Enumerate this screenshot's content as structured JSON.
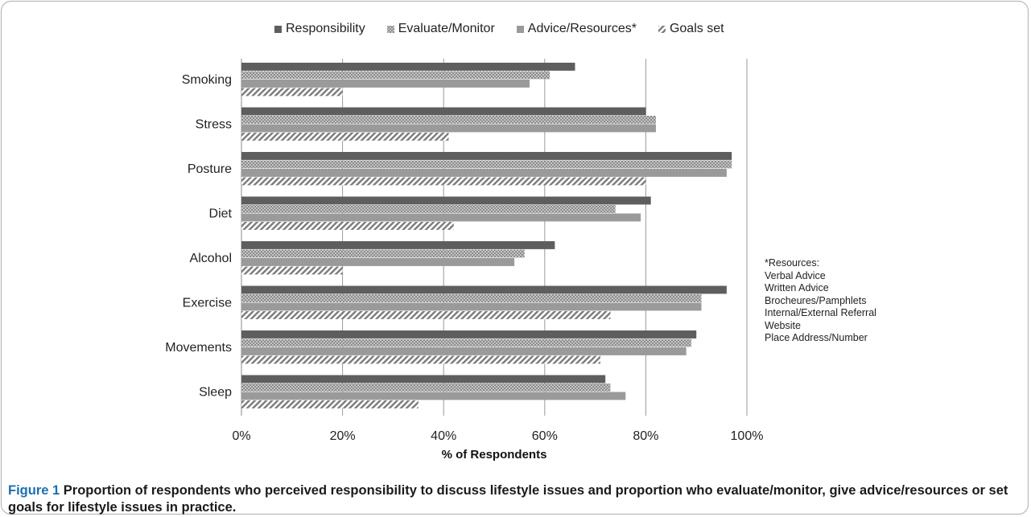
{
  "chart_data": {
    "type": "bar",
    "orientation": "horizontal",
    "categories": [
      "Smoking",
      "Stress",
      "Posture",
      "Diet",
      "Alcohol",
      "Exercise",
      "Movements",
      "Sleep"
    ],
    "series": [
      {
        "name": "Responsibility",
        "color": "#5e5e5e",
        "pattern": "solid",
        "values": [
          66,
          80,
          97,
          81,
          62,
          96,
          90,
          72
        ]
      },
      {
        "name": "Evaluate/Monitor",
        "color": "#9a9a9a",
        "pattern": "checker",
        "values": [
          61,
          82,
          97,
          74,
          56,
          91,
          89,
          73
        ]
      },
      {
        "name": "Advice/Resources*",
        "color": "#9a9a9a",
        "pattern": "solid",
        "values": [
          57,
          82,
          96,
          79,
          54,
          91,
          88,
          76
        ]
      },
      {
        "name": "Goals set",
        "color": "#8a8a8a",
        "pattern": "diagonal",
        "values": [
          20,
          41,
          80,
          42,
          20,
          73,
          71,
          35
        ]
      }
    ],
    "xlabel": "% of Respondents",
    "xlim": [
      0,
      100
    ],
    "xticks": [
      "0%",
      "20%",
      "40%",
      "60%",
      "80%",
      "100%"
    ],
    "grid": "vertical",
    "legend_position": "top"
  },
  "note": {
    "lines": [
      "*Resources:",
      "Verbal Advice",
      "Written Advice",
      "Brocheures/Pamphlets",
      "Internal/External Referral",
      "Website",
      "Place Address/Number"
    ]
  },
  "caption": {
    "label": "Figure 1",
    "text": "Proportion of respondents who perceived responsibility to discuss lifestyle issues and proportion who evaluate/monitor, give advice/resources or set goals for lifestyle issues in practice."
  }
}
